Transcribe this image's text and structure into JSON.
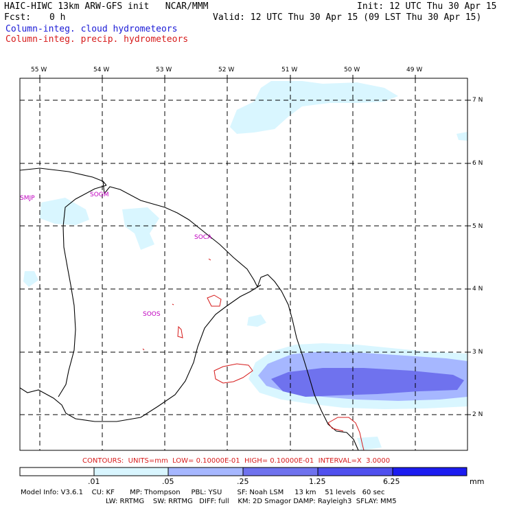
{
  "header": {
    "model_line": "HAIC-HIWC 13km ARW-GFS init   NCAR/MMM",
    "fcst_label": "Fcst:",
    "fcst_value": "0 h",
    "init": "Init: 12 UTC Thu 30 Apr 15",
    "valid": "Valid: 12 UTC Thu 30 Apr 15 (09 LST Thu 30 Apr 15)",
    "fill_field": "Column-integ. cloud hydrometeors",
    "contour_field": "Column-integ. precip. hydrometeors"
  },
  "map": {
    "longitude_labels": [
      "55 W",
      "54 W",
      "53 W",
      "52 W",
      "51 W",
      "50 W",
      "49 W"
    ],
    "latitude_labels": [
      "7 N",
      "6 N",
      "5 N",
      "4 N",
      "3 N",
      "2 N"
    ],
    "stations": [
      "SMJP",
      "SOGM",
      "SOCA",
      "SOOS"
    ]
  },
  "contours_note": "CONTOURS:  UNITS=mm  LOW= 0.10000E-01  HIGH= 0.10000E-01  INTERVAL=X  3.0000",
  "colorbar": {
    "levels": [
      ".01",
      ".05",
      ".25",
      "1.25",
      "6.25"
    ],
    "units": "mm",
    "colors": [
      "#ffffff",
      "#d9f6ff",
      "#a6b7ff",
      "#6f72ee",
      "#1c1cf0"
    ]
  },
  "model_info": {
    "line1": "Model Info: V3.6.1    CU: KF       MP: Thompson     PBL: YSU       SF: Noah LSM     13 km    51 levels   60 sec",
    "line2": "LW: RRTMG    SW: RRTMG   DIFF: full    KM: 2D Smagor DAMP: Rayleigh3  SFLAY: MM5"
  },
  "colors": {
    "fill_title": "#1a1ad6",
    "contour_title": "#d61a1a",
    "station": "#c000c0",
    "contour": "#d61a1a"
  }
}
